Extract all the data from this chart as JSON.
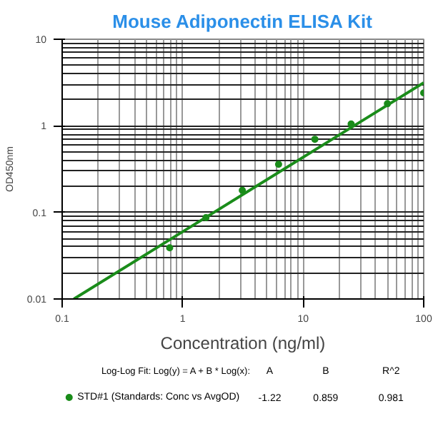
{
  "chart_data": {
    "type": "scatter",
    "title": "Mouse Adiponectin ELISA Kit",
    "xlabel": "Concentration (ng/ml)",
    "ylabel": "OD450nm",
    "x": [
      0.78,
      1.56,
      3.125,
      6.25,
      12.5,
      25,
      50,
      100
    ],
    "series": [
      {
        "name": "STD#1 (Standards: Conc vs AvgOD)",
        "color": "#1a8c1a",
        "values": [
          0.039,
          0.087,
          0.18,
          0.36,
          0.7,
          1.05,
          1.8,
          2.4
        ],
        "marker": "circle"
      },
      {
        "type": "line",
        "color": "#1a8c1a",
        "x": [
          0.125,
          100
        ],
        "values": [
          0.01,
          3.15
        ],
        "line_style": "solid"
      }
    ],
    "log": "xy",
    "xlim": [
      0.1,
      100
    ],
    "ylim": [
      0.01,
      10
    ],
    "xticks": [
      0.1,
      1,
      10,
      100
    ],
    "yticks": [
      0.01,
      0.1,
      1,
      10
    ],
    "grid": true,
    "legend": "bottom",
    "annotations": [
      "Log-Log Fit: Log(y) = A + B * Log(x):",
      "A",
      "B",
      "R^2",
      "-1.22",
      "0.859",
      "0.981"
    ]
  }
}
